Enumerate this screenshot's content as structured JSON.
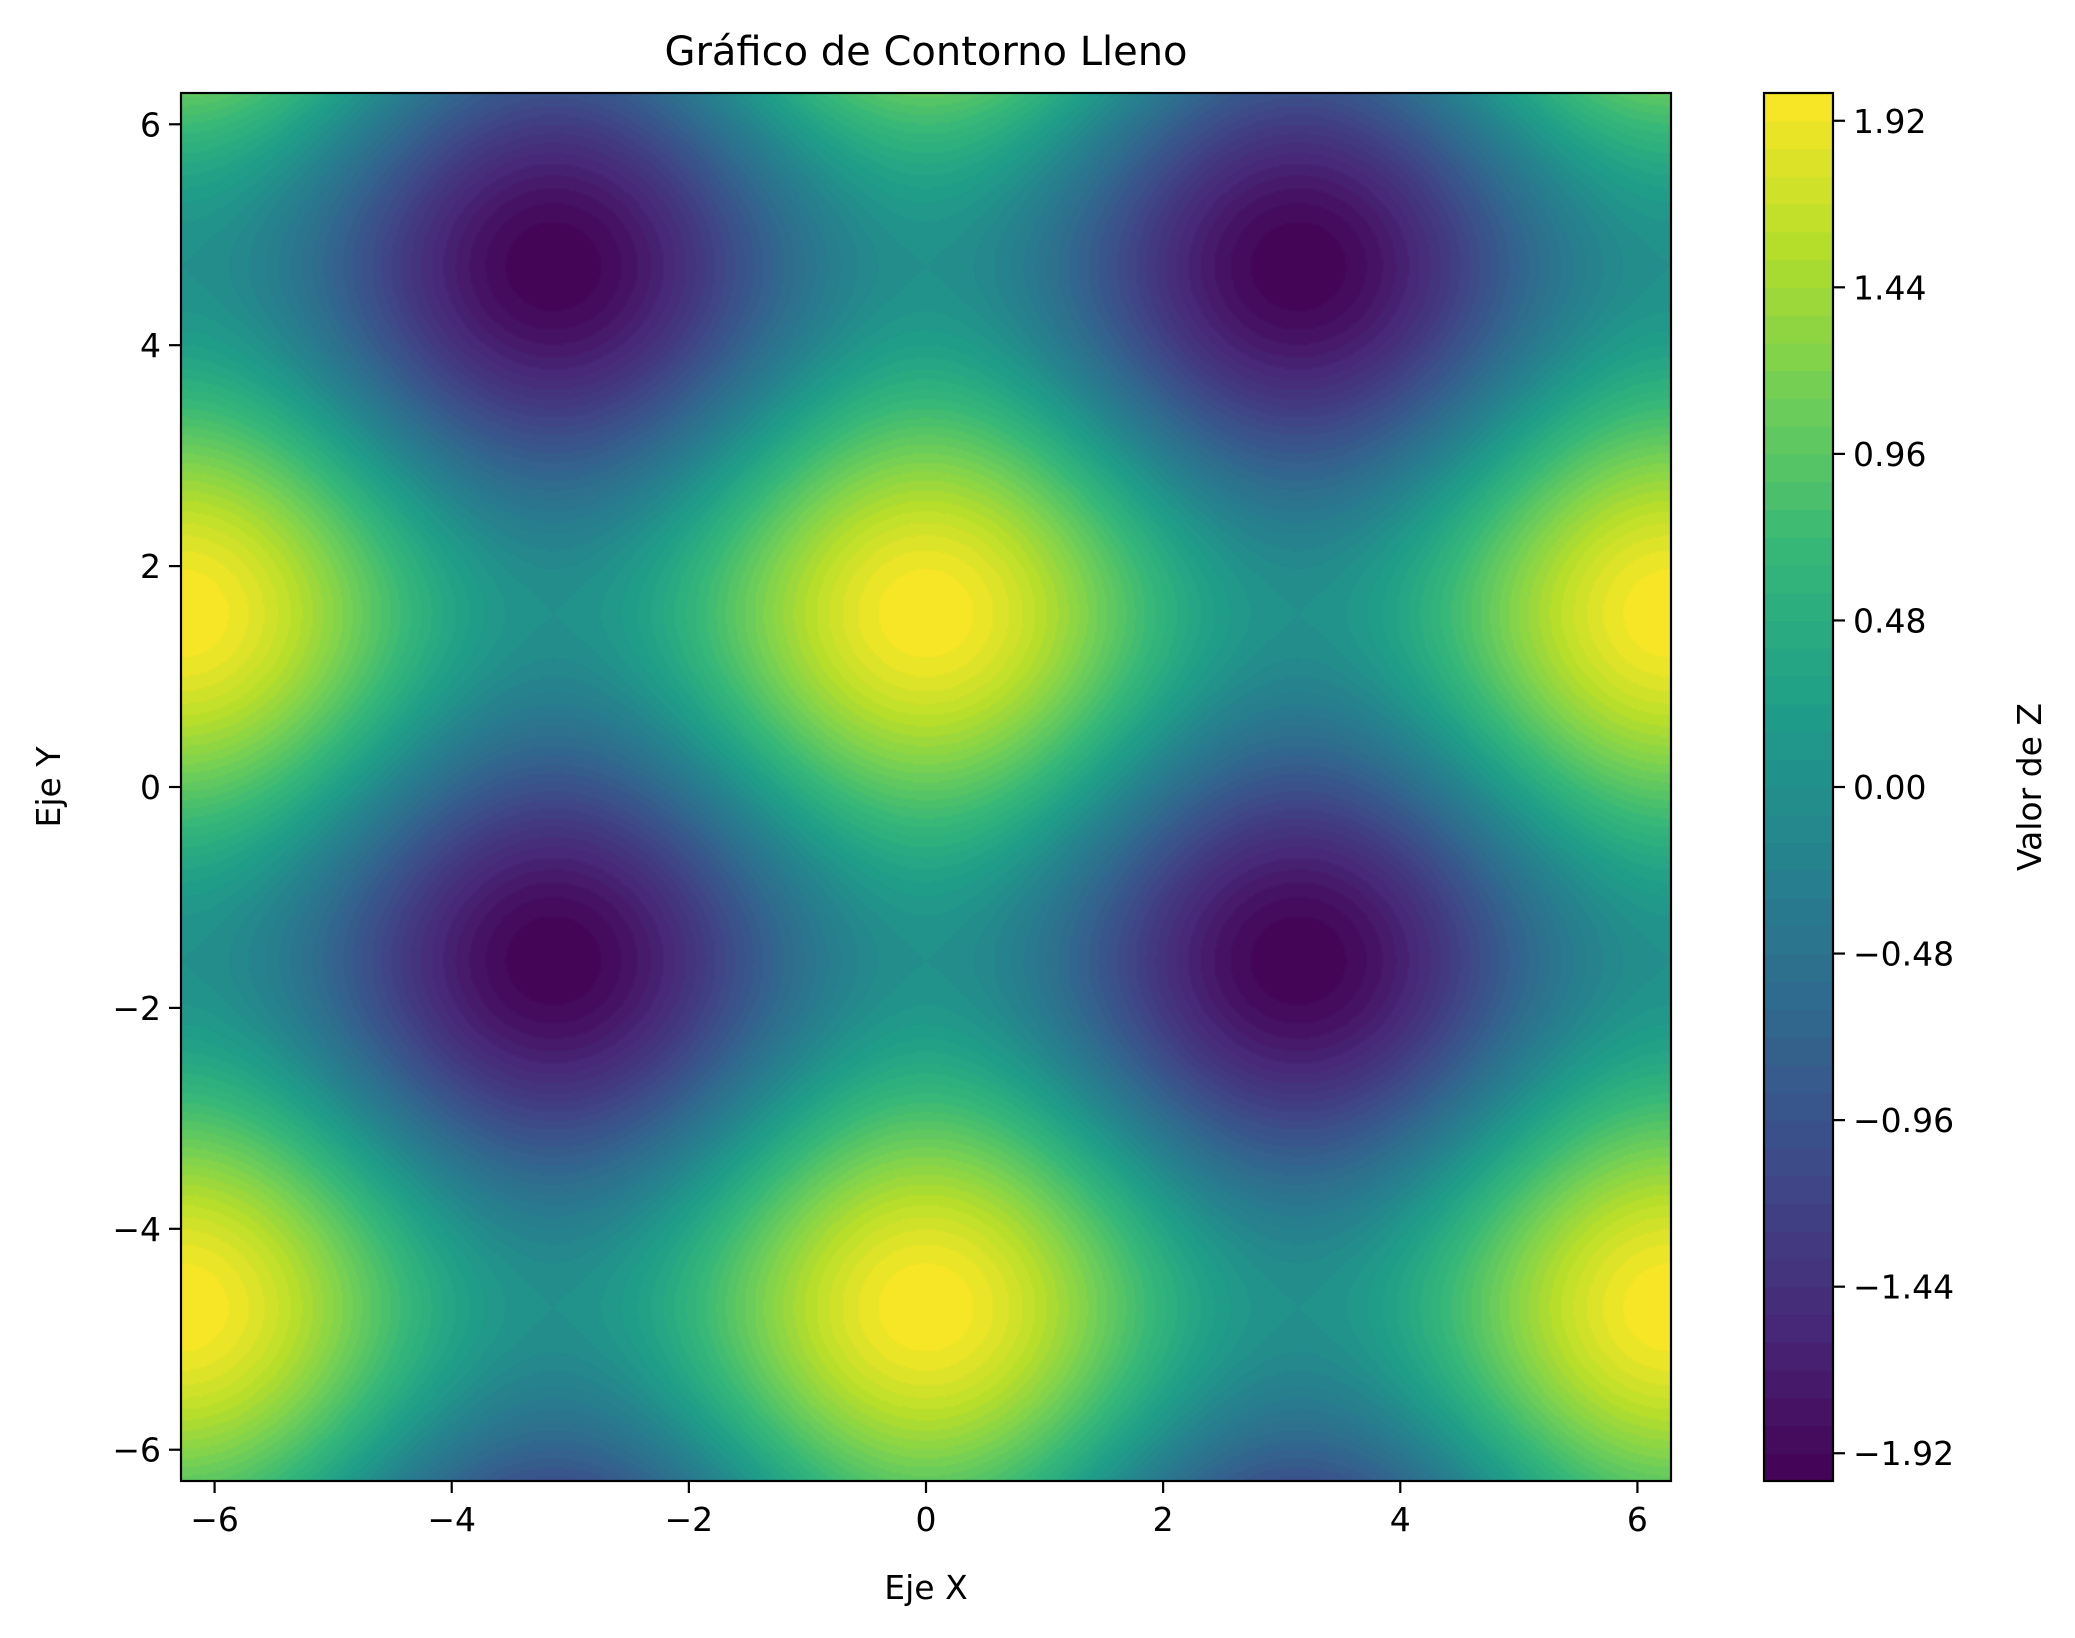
{
  "chart_data": {
    "type": "heatmap",
    "subtype": "filled-contour",
    "title": "Gráfico de Contorno Lleno",
    "xlabel": "Eje X",
    "ylabel": "Eje Y",
    "xlim": [
      -6.2832,
      6.2832
    ],
    "ylim": [
      -6.2832,
      6.2832
    ],
    "x_ticks": [
      -6,
      -4,
      -2,
      0,
      2,
      4,
      6
    ],
    "y_ticks": [
      -6,
      -4,
      -2,
      0,
      2,
      4,
      6
    ],
    "x_tick_labels": [
      "−6",
      "−4",
      "−2",
      "0",
      "2",
      "4",
      "6"
    ],
    "y_tick_labels": [
      "−6",
      "−4",
      "−2",
      "0",
      "2",
      "4",
      "6"
    ],
    "function": "z = sin(y) + cos(x)",
    "z_range": [
      -2.0,
      2.0
    ],
    "levels": 50,
    "colormap": "viridis",
    "colorbar": {
      "label": "Valor de Z",
      "ticks": [
        1.92,
        1.44,
        0.96,
        0.48,
        0.0,
        -0.48,
        -0.96,
        -1.44,
        -1.92
      ],
      "tick_labels": [
        "1.92",
        "1.44",
        "0.96",
        "0.48",
        "0.00",
        "−0.48",
        "−0.96",
        "−1.44",
        "−1.92"
      ]
    },
    "colormap_stops": [
      "#440154",
      "#482878",
      "#3e4989",
      "#31688e",
      "#26828e",
      "#1f9e89",
      "#35b779",
      "#6ece58",
      "#b5de2b",
      "#fde725"
    ],
    "extrema": [
      {
        "x": 0.0,
        "y": 1.571,
        "z": 2.0
      },
      {
        "x": -6.283,
        "y": 1.571,
        "z": 2.0
      },
      {
        "x": 6.283,
        "y": 1.571,
        "z": 2.0
      },
      {
        "x": 0.0,
        "y": -4.712,
        "z": 2.0
      },
      {
        "x": -6.283,
        "y": -4.712,
        "z": 2.0
      },
      {
        "x": 6.283,
        "y": -4.712,
        "z": 2.0
      },
      {
        "x": -3.142,
        "y": 4.712,
        "z": -2.0
      },
      {
        "x": 3.142,
        "y": 4.712,
        "z": -2.0
      },
      {
        "x": -3.142,
        "y": -1.571,
        "z": -2.0
      },
      {
        "x": 3.142,
        "y": -1.571,
        "z": -2.0
      }
    ]
  }
}
